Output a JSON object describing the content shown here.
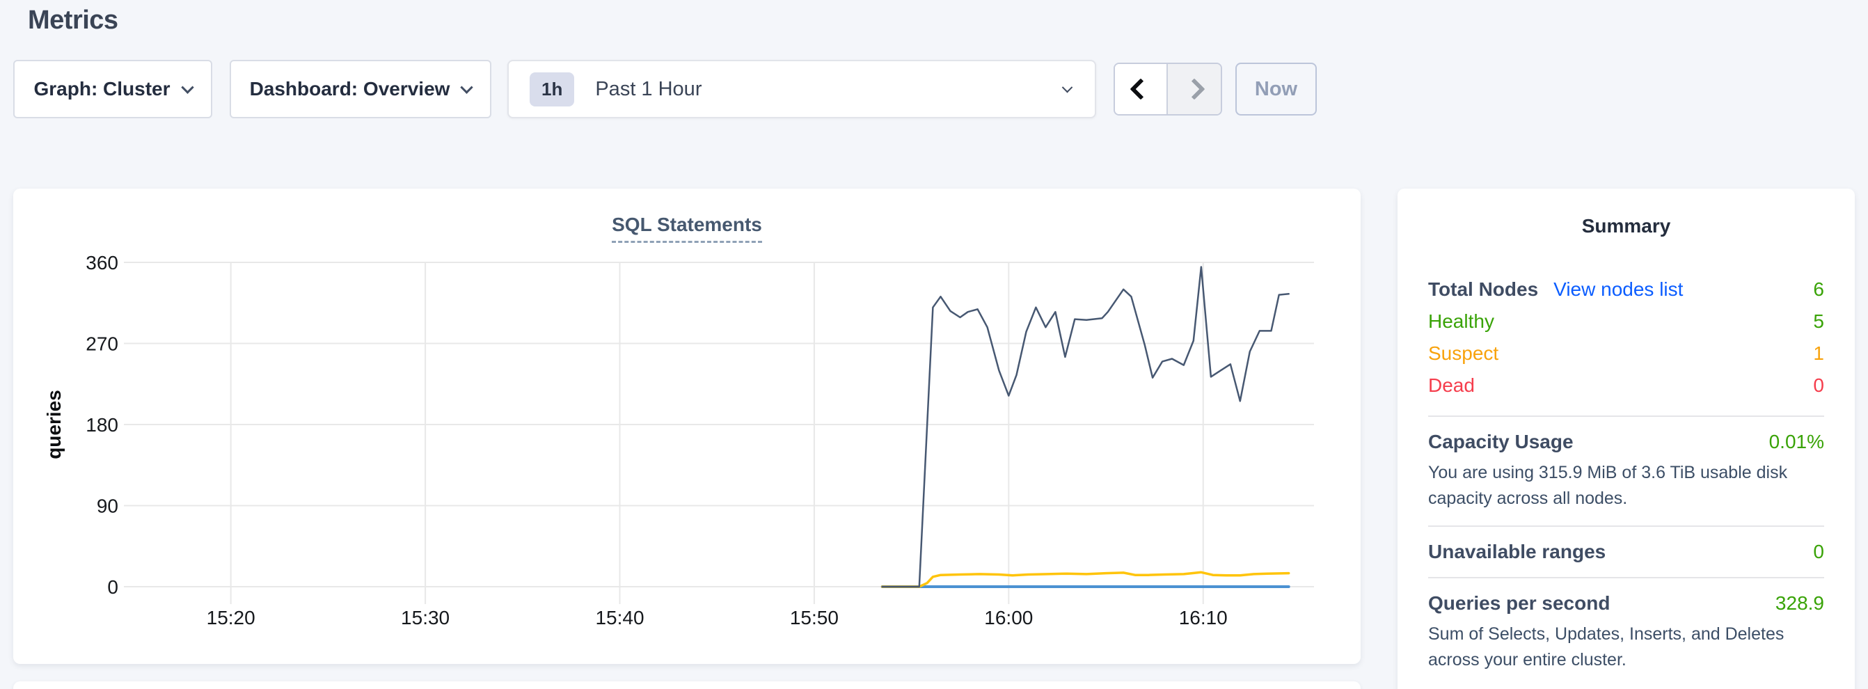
{
  "page": {
    "title": "Metrics"
  },
  "toolbar": {
    "graph_label": "Graph: Cluster",
    "dashboard_label": "Dashboard: Overview",
    "time_badge": "1h",
    "time_label": "Past 1 Hour",
    "now_label": "Now"
  },
  "chart_data": {
    "type": "line",
    "title": "SQL Statements",
    "ylabel": "queries",
    "ylim": [
      0,
      360
    ],
    "yticks": [
      0,
      90,
      180,
      270,
      360
    ],
    "xticks": [
      {
        "minute": 20,
        "label": "15:20"
      },
      {
        "minute": 30,
        "label": "15:30"
      },
      {
        "minute": 40,
        "label": "15:40"
      },
      {
        "minute": 50,
        "label": "15:50"
      },
      {
        "minute": 60,
        "label": "16:00"
      },
      {
        "minute": 70,
        "label": "16:10"
      }
    ],
    "x_domain_minutes": [
      14.5,
      75.7
    ],
    "grid": true,
    "legend": "none",
    "series": [
      {
        "name": "blue-series",
        "color": "#4b91d2",
        "width": 4,
        "points": [
          [
            53.5,
            0
          ],
          [
            74.4,
            0
          ]
        ]
      },
      {
        "name": "yellow-series",
        "color": "#ffc40c",
        "width": 3.5,
        "points": [
          [
            53.5,
            0
          ],
          [
            55.4,
            0
          ],
          [
            55.8,
            4
          ],
          [
            56.1,
            11
          ],
          [
            56.5,
            13
          ],
          [
            57.5,
            13.5
          ],
          [
            58.5,
            14
          ],
          [
            59.5,
            13.5
          ],
          [
            60.2,
            12.5
          ],
          [
            61.0,
            13.5
          ],
          [
            62.0,
            14
          ],
          [
            63.0,
            14.5
          ],
          [
            64.0,
            14
          ],
          [
            65.0,
            15
          ],
          [
            65.9,
            15.5
          ],
          [
            66.5,
            13
          ],
          [
            67.2,
            13
          ],
          [
            68.0,
            13.5
          ],
          [
            69.0,
            14
          ],
          [
            69.9,
            16
          ],
          [
            70.5,
            13
          ],
          [
            71.2,
            12.5
          ],
          [
            71.9,
            12.5
          ],
          [
            72.6,
            14
          ],
          [
            73.3,
            14.5
          ],
          [
            74.4,
            15
          ]
        ]
      },
      {
        "name": "navy-series",
        "color": "#475872",
        "width": 2.5,
        "points": [
          [
            53.5,
            0
          ],
          [
            55.4,
            0
          ],
          [
            56.1,
            310
          ],
          [
            56.5,
            322
          ],
          [
            57.0,
            306
          ],
          [
            57.5,
            299
          ],
          [
            57.9,
            305
          ],
          [
            58.4,
            308
          ],
          [
            58.9,
            288
          ],
          [
            59.5,
            240
          ],
          [
            60.0,
            212
          ],
          [
            60.4,
            235
          ],
          [
            60.9,
            283
          ],
          [
            61.4,
            310
          ],
          [
            61.9,
            288
          ],
          [
            62.4,
            305
          ],
          [
            62.9,
            255
          ],
          [
            63.4,
            297
          ],
          [
            64.0,
            296
          ],
          [
            64.8,
            298
          ],
          [
            65.1,
            305
          ],
          [
            65.9,
            330
          ],
          [
            66.3,
            322
          ],
          [
            67.0,
            268
          ],
          [
            67.4,
            232
          ],
          [
            67.9,
            250
          ],
          [
            68.4,
            253
          ],
          [
            69.0,
            246
          ],
          [
            69.5,
            273
          ],
          [
            69.9,
            355
          ],
          [
            70.4,
            233
          ],
          [
            70.9,
            240
          ],
          [
            71.4,
            247
          ],
          [
            71.9,
            206
          ],
          [
            72.4,
            261
          ],
          [
            72.9,
            284
          ],
          [
            73.5,
            284
          ],
          [
            73.9,
            324
          ],
          [
            74.4,
            325
          ]
        ]
      }
    ]
  },
  "summary": {
    "title": "Summary",
    "node_rows": [
      {
        "label": "Total Nodes",
        "link": "View nodes list",
        "value": "6"
      },
      {
        "label": "Healthy",
        "value": "5"
      },
      {
        "label": "Suspect",
        "value": "1"
      },
      {
        "label": "Dead",
        "value": "0"
      }
    ],
    "sections": [
      {
        "label": "Capacity Usage",
        "value": "0.01%",
        "description": "You are using 315.9 MiB of 3.6 TiB usable disk capacity across all nodes."
      },
      {
        "label": "Unavailable ranges",
        "value": "0",
        "description": ""
      },
      {
        "label": "Queries per second",
        "value": "328.9",
        "description": "Sum of Selects, Updates, Inserts, and Deletes across your entire cluster."
      }
    ]
  },
  "colors": {
    "green": "#39a307",
    "orange": "#f8a20c",
    "red": "#f53d4c",
    "link_blue": "#0b5dff",
    "navy_text": "#3f4c63",
    "grid": "#e8e8e8",
    "tick_text": "#16191d"
  }
}
